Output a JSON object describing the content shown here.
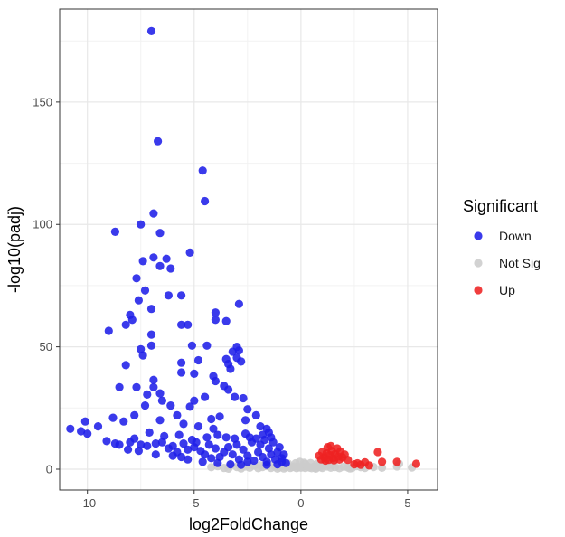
{
  "chart_data": {
    "type": "scatter",
    "title": "",
    "xlabel": "log2FoldChange",
    "ylabel": "-log10(padj)",
    "xlim": [
      -11.3,
      6.4
    ],
    "ylim": [
      -8.5,
      188
    ],
    "x_ticks": [
      -10,
      -5,
      0,
      5
    ],
    "y_ticks": [
      0,
      50,
      100,
      150
    ],
    "grid": true,
    "legend": {
      "title": "Significant",
      "position": "right",
      "entries": [
        "Down",
        "Not Sig",
        "Up"
      ]
    },
    "colors": {
      "Down": "#1f1fe8",
      "Not Sig": "#cccccc",
      "Up": "#ee2222"
    },
    "series": [
      {
        "name": "Not Sig",
        "points": [
          [
            -4.2,
            0.8
          ],
          [
            -3.9,
            1.2
          ],
          [
            -3.6,
            0.5
          ],
          [
            -3.3,
            1.5
          ],
          [
            -3.0,
            0.9
          ],
          [
            -2.8,
            0.3
          ],
          [
            -2.6,
            1.1
          ],
          [
            -2.4,
            0.6
          ],
          [
            -2.2,
            1.4
          ],
          [
            -2.0,
            0.4
          ],
          [
            -1.8,
            0.9
          ],
          [
            -1.6,
            1.3
          ],
          [
            -1.4,
            0.5
          ],
          [
            -1.2,
            1.0
          ],
          [
            -1.0,
            0.7
          ],
          [
            -0.9,
            1.5
          ],
          [
            -0.8,
            0.3
          ],
          [
            -0.7,
            0.9
          ],
          [
            -0.6,
            1.2
          ],
          [
            -0.5,
            0.5
          ],
          [
            -0.4,
            0.8
          ],
          [
            -0.3,
            1.1
          ],
          [
            -0.2,
            0.4
          ],
          [
            -0.1,
            0.9
          ],
          [
            0.0,
            0.6
          ],
          [
            0.1,
            1.0
          ],
          [
            0.2,
            0.5
          ],
          [
            0.3,
            1.2
          ],
          [
            0.4,
            0.7
          ],
          [
            0.5,
            0.4
          ],
          [
            0.6,
            1.0
          ],
          [
            0.7,
            0.6
          ],
          [
            0.8,
            1.3
          ],
          [
            0.9,
            0.8
          ],
          [
            1.0,
            0.5
          ],
          [
            1.2,
            1.1
          ],
          [
            1.4,
            0.6
          ],
          [
            1.6,
            0.9
          ],
          [
            1.8,
            0.4
          ],
          [
            2.0,
            1.0
          ],
          [
            2.2,
            0.7
          ],
          [
            2.4,
            0.5
          ],
          [
            2.6,
            1.2
          ],
          [
            2.8,
            0.8
          ],
          [
            3.0,
            0.5
          ],
          [
            3.4,
            0.9
          ],
          [
            3.8,
            0.6
          ],
          [
            4.5,
            1.1
          ],
          [
            5.2,
            0.7
          ],
          [
            4.6,
            2.2
          ],
          [
            -2.5,
            1.8
          ],
          [
            -1.5,
            2.0
          ],
          [
            -0.8,
            1.9
          ],
          [
            0.2,
            2.1
          ],
          [
            0.9,
            1.7
          ],
          [
            1.5,
            2.0
          ],
          [
            -3.4,
            0.2
          ],
          [
            -1.1,
            0.2
          ],
          [
            0.7,
            0.2
          ],
          [
            2.3,
            0.3
          ],
          [
            -0.05,
            3.0
          ],
          [
            0.15,
            2.6
          ],
          [
            -0.25,
            2.4
          ],
          [
            0.45,
            2.5
          ],
          [
            -0.6,
            2.3
          ],
          [
            0.75,
            2.2
          ],
          [
            1.1,
            2.4
          ],
          [
            1.3,
            1.8
          ],
          [
            -1.9,
            1.6
          ],
          [
            -2.9,
            1.7
          ]
        ]
      },
      {
        "name": "Down",
        "points": [
          [
            -7.0,
            179
          ],
          [
            -6.7,
            134
          ],
          [
            -4.6,
            122
          ],
          [
            -4.5,
            109.5
          ],
          [
            -6.9,
            104.5
          ],
          [
            -7.5,
            100
          ],
          [
            -8.7,
            97
          ],
          [
            -6.6,
            96.5
          ],
          [
            -7.4,
            85
          ],
          [
            -6.9,
            86.5
          ],
          [
            -6.3,
            86
          ],
          [
            -6.6,
            83
          ],
          [
            -6.1,
            82
          ],
          [
            -5.2,
            88.5
          ],
          [
            -7.7,
            78
          ],
          [
            -7.3,
            73
          ],
          [
            -7.6,
            69
          ],
          [
            -7.0,
            65.5
          ],
          [
            -8.0,
            63
          ],
          [
            -7.9,
            61
          ],
          [
            -8.2,
            59
          ],
          [
            -9.0,
            56.5
          ],
          [
            -6.2,
            71
          ],
          [
            -5.6,
            71
          ],
          [
            -5.6,
            59
          ],
          [
            -5.3,
            59
          ],
          [
            -2.9,
            67.5
          ],
          [
            -4.0,
            64
          ],
          [
            -4.0,
            61
          ],
          [
            -3.5,
            60.5
          ],
          [
            -7.0,
            55
          ],
          [
            -7.0,
            50.5
          ],
          [
            -7.5,
            49
          ],
          [
            -7.4,
            46.5
          ],
          [
            -8.2,
            42.5
          ],
          [
            -5.1,
            50.5
          ],
          [
            -4.4,
            50.5
          ],
          [
            -3.2,
            48
          ],
          [
            -3.0,
            50
          ],
          [
            -2.9,
            48.5
          ],
          [
            -3.5,
            45
          ],
          [
            -3.4,
            43
          ],
          [
            -3.3,
            41
          ],
          [
            -3.0,
            45.5
          ],
          [
            -2.8,
            44
          ],
          [
            -5.6,
            43.5
          ],
          [
            -4.8,
            44.5
          ],
          [
            -4.1,
            38
          ],
          [
            -4.0,
            36
          ],
          [
            -5.6,
            39.5
          ],
          [
            -5.0,
            39
          ],
          [
            -6.9,
            36.5
          ],
          [
            -6.9,
            33.5
          ],
          [
            -7.7,
            33.5
          ],
          [
            -8.5,
            33.5
          ],
          [
            -7.2,
            30.5
          ],
          [
            -6.6,
            31
          ],
          [
            -6.5,
            28
          ],
          [
            -7.3,
            26
          ],
          [
            -7.8,
            22
          ],
          [
            -8.3,
            19.5
          ],
          [
            -8.8,
            21
          ],
          [
            -3.6,
            34
          ],
          [
            -3.4,
            32.5
          ],
          [
            -3.1,
            29.5
          ],
          [
            -4.5,
            29.5
          ],
          [
            -5.0,
            28
          ],
          [
            -2.7,
            29
          ],
          [
            -2.5,
            24.5
          ],
          [
            -3.8,
            21.5
          ],
          [
            -4.2,
            20.5
          ],
          [
            -5.2,
            25.5
          ],
          [
            -6.1,
            26
          ],
          [
            -5.8,
            22
          ],
          [
            -5.5,
            18.5
          ],
          [
            -6.6,
            20
          ],
          [
            -4.8,
            17.5
          ],
          [
            -4.1,
            16.5
          ],
          [
            -2.1,
            22
          ],
          [
            -2.6,
            20
          ],
          [
            -1.9,
            17.5
          ],
          [
            -1.6,
            16.5
          ],
          [
            -1.5,
            15
          ],
          [
            -10.8,
            16.5
          ],
          [
            -10.1,
            19.5
          ],
          [
            -9.5,
            17.5
          ],
          [
            -10.3,
            15.5
          ],
          [
            -10.0,
            14.5
          ],
          [
            -9.1,
            11.5
          ],
          [
            -8.7,
            10.5
          ],
          [
            -8.5,
            10.0
          ],
          [
            -8.0,
            11
          ],
          [
            -7.8,
            12.5
          ],
          [
            -7.5,
            10
          ],
          [
            -7.2,
            9.5
          ],
          [
            -6.8,
            10.5
          ],
          [
            -6.5,
            11
          ],
          [
            -6.2,
            8.5
          ],
          [
            -6.0,
            9.5
          ],
          [
            -5.8,
            7.0
          ],
          [
            -5.5,
            10.5
          ],
          [
            -5.3,
            8
          ],
          [
            -5.0,
            9
          ],
          [
            -4.7,
            7.5
          ],
          [
            -4.5,
            6
          ],
          [
            -4.3,
            10
          ],
          [
            -4.0,
            8.5
          ],
          [
            -3.8,
            5
          ],
          [
            -3.6,
            7
          ],
          [
            -3.4,
            9
          ],
          [
            -3.2,
            6
          ],
          [
            -3.0,
            10
          ],
          [
            -2.9,
            4
          ],
          [
            -2.7,
            8
          ],
          [
            -2.5,
            5.5
          ],
          [
            -2.3,
            11
          ],
          [
            -2.2,
            3.5
          ],
          [
            -2.0,
            7
          ],
          [
            -1.9,
            10
          ],
          [
            -1.8,
            5
          ],
          [
            -1.7,
            12
          ],
          [
            -1.6,
            3
          ],
          [
            -1.5,
            8.5
          ],
          [
            -1.4,
            6
          ],
          [
            -1.3,
            11
          ],
          [
            -1.2,
            4
          ],
          [
            -1.1,
            7
          ],
          [
            -1.0,
            9
          ],
          [
            -0.9,
            3
          ],
          [
            -0.8,
            6
          ],
          [
            -0.7,
            2.5
          ],
          [
            -2.4,
            13
          ],
          [
            -3.1,
            12.5
          ],
          [
            -3.9,
            14
          ],
          [
            -4.4,
            13
          ],
          [
            -5.1,
            12
          ],
          [
            -5.7,
            14
          ],
          [
            -6.4,
            13.5
          ],
          [
            -7.1,
            15
          ],
          [
            -2.6,
            14.5
          ],
          [
            -2.1,
            12.5
          ],
          [
            -1.8,
            14
          ],
          [
            -1.4,
            13
          ],
          [
            -3.5,
            13
          ],
          [
            -4.9,
            11
          ],
          [
            -6.0,
            5.5
          ],
          [
            -6.8,
            6
          ],
          [
            -7.6,
            7.5
          ],
          [
            -8.1,
            8
          ],
          [
            -5.3,
            4
          ],
          [
            -4.6,
            3
          ],
          [
            -3.9,
            2.5
          ],
          [
            -3.3,
            2
          ],
          [
            -2.8,
            1.8
          ],
          [
            -4.2,
            4.5
          ],
          [
            -5.6,
            5
          ],
          [
            -2.5,
            3
          ],
          [
            -1.6,
            1.8
          ],
          [
            -1.1,
            2
          ],
          [
            -0.9,
            4.5
          ]
        ]
      },
      {
        "name": "Up",
        "points": [
          [
            0.85,
            5.5
          ],
          [
            1.0,
            7.0
          ],
          [
            1.1,
            4.8
          ],
          [
            1.2,
            6.5
          ],
          [
            1.25,
            9.0
          ],
          [
            1.35,
            5.8
          ],
          [
            1.45,
            7.5
          ],
          [
            1.5,
            4.5
          ],
          [
            1.6,
            6.2
          ],
          [
            1.7,
            8.5
          ],
          [
            1.75,
            5.2
          ],
          [
            1.85,
            7.2
          ],
          [
            1.95,
            4.8
          ],
          [
            2.05,
            6.0
          ],
          [
            1.3,
            3.8
          ],
          [
            1.55,
            3.6
          ],
          [
            1.8,
            3.9
          ],
          [
            2.2,
            3.8
          ],
          [
            0.95,
            4.0
          ],
          [
            1.15,
            3.5
          ],
          [
            2.5,
            2.0
          ],
          [
            2.8,
            1.8
          ],
          [
            3.0,
            2.8
          ],
          [
            3.2,
            1.5
          ],
          [
            3.6,
            7.0
          ],
          [
            3.8,
            3.0
          ],
          [
            4.5,
            3.0
          ],
          [
            5.4,
            2.2
          ],
          [
            2.65,
            2.4
          ],
          [
            1.4,
            9.5
          ]
        ]
      }
    ]
  }
}
